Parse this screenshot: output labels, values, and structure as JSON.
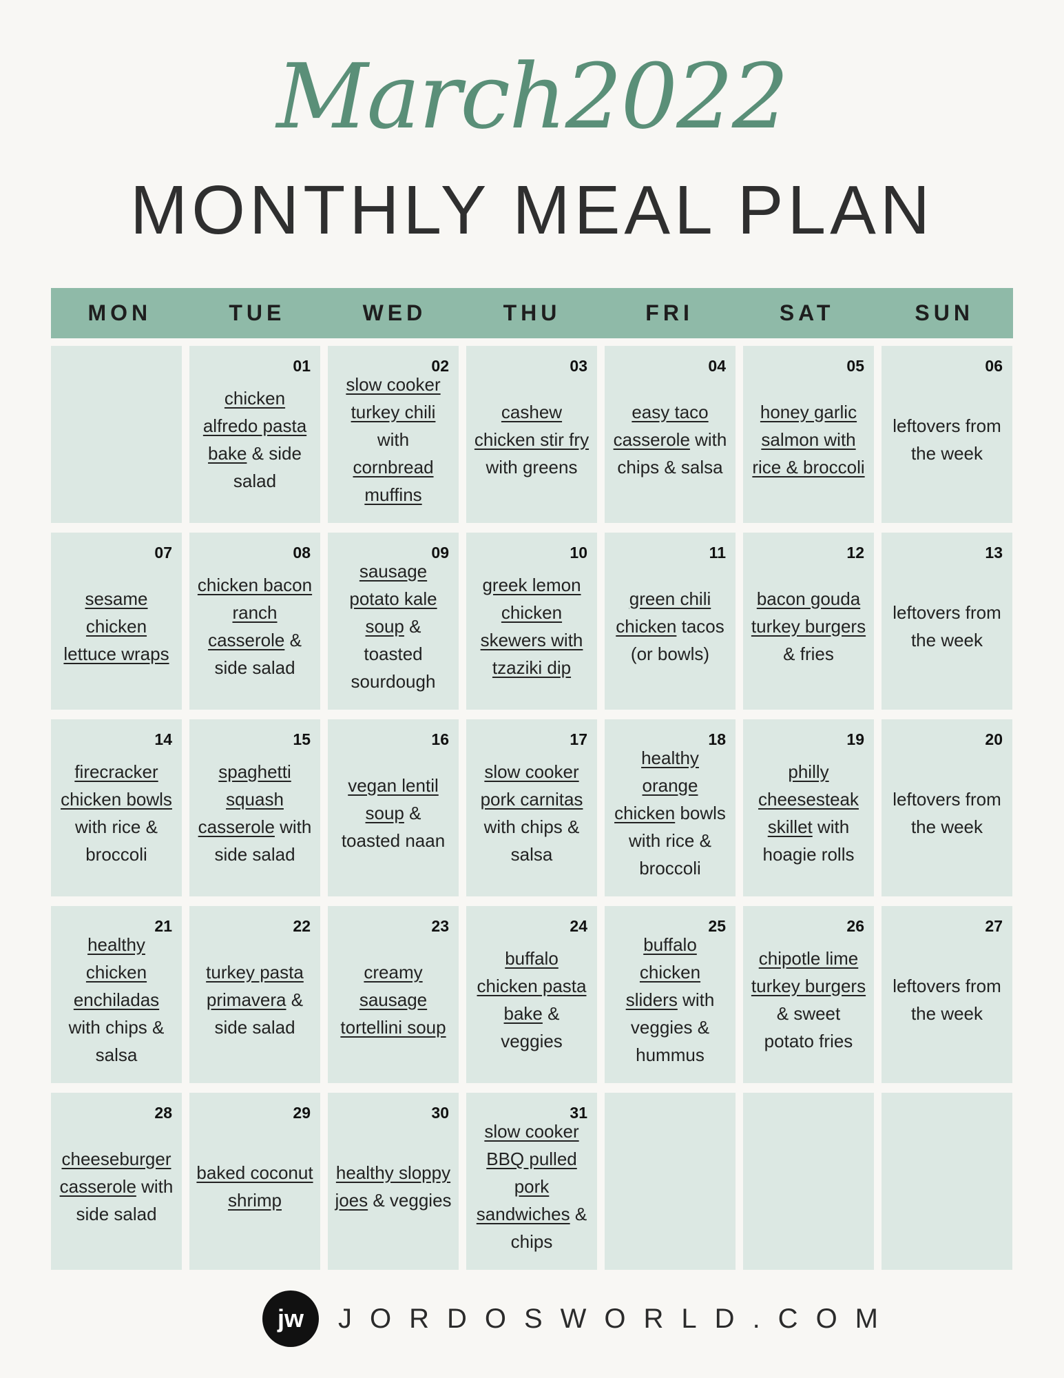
{
  "title_script": "March2022",
  "title": "MONTHLY MEAL PLAN",
  "colors": {
    "background": "#f8f7f4",
    "header_bar": "#8fbaa8",
    "cell": "#dce8e3",
    "accent": "#5a8f78"
  },
  "days": [
    "MON",
    "TUE",
    "WED",
    "THU",
    "FRI",
    "SAT",
    "SUN"
  ],
  "cells": [
    {
      "num": "",
      "meal": []
    },
    {
      "num": "01",
      "meal": [
        {
          "t": "chicken alfredo pasta bake",
          "u": true
        },
        {
          "t": " & side salad",
          "u": false
        }
      ]
    },
    {
      "num": "02",
      "meal": [
        {
          "t": "slow cooker turkey chili",
          "u": true
        },
        {
          "t": " with ",
          "u": false
        },
        {
          "t": "cornbread muffins",
          "u": true
        }
      ]
    },
    {
      "num": "03",
      "meal": [
        {
          "t": "cashew chicken stir fry ",
          "u": true
        },
        {
          "t": " with greens",
          "u": false
        }
      ]
    },
    {
      "num": "04",
      "meal": [
        {
          "t": "easy taco casserole",
          "u": true
        },
        {
          "t": " with chips & salsa",
          "u": false
        }
      ]
    },
    {
      "num": "05",
      "meal": [
        {
          "t": "honey garlic salmon with rice & broccoli",
          "u": true
        }
      ]
    },
    {
      "num": "06",
      "meal": [
        {
          "t": "leftovers from the week",
          "u": false
        }
      ]
    },
    {
      "num": "07",
      "meal": [
        {
          "t": "sesame chicken lettuce wraps ",
          "u": true
        }
      ]
    },
    {
      "num": "08",
      "meal": [
        {
          "t": "chicken bacon ranch casserole",
          "u": true
        },
        {
          "t": " & side salad",
          "u": false
        }
      ]
    },
    {
      "num": "09",
      "meal": [
        {
          "t": "sausage potato kale soup",
          "u": true
        },
        {
          "t": " & toasted sourdough",
          "u": false
        }
      ]
    },
    {
      "num": "10",
      "meal": [
        {
          "t": "greek lemon chicken skewers with tzaziki dip",
          "u": true
        }
      ]
    },
    {
      "num": "11",
      "meal": [
        {
          "t": "green chili chicken",
          "u": true
        },
        {
          "t": " tacos (or bowls)",
          "u": false
        }
      ]
    },
    {
      "num": "12",
      "meal": [
        {
          "t": "bacon gouda turkey burgers",
          "u": true
        },
        {
          "t": " & fries",
          "u": false
        }
      ]
    },
    {
      "num": "13",
      "meal": [
        {
          "t": "leftovers from the week",
          "u": false
        }
      ]
    },
    {
      "num": "14",
      "meal": [
        {
          "t": "firecracker chicken bowls",
          "u": true
        },
        {
          "t": " with rice & broccoli",
          "u": false
        }
      ]
    },
    {
      "num": "15",
      "meal": [
        {
          "t": "spaghetti squash casserole",
          "u": true
        },
        {
          "t": " with side salad",
          "u": false
        }
      ]
    },
    {
      "num": "16",
      "meal": [
        {
          "t": "vegan lentil soup",
          "u": true
        },
        {
          "t": " & toasted naan",
          "u": false
        }
      ]
    },
    {
      "num": "17",
      "meal": [
        {
          "t": "slow cooker pork carnitas",
          "u": true
        },
        {
          "t": " with chips & salsa",
          "u": false
        }
      ]
    },
    {
      "num": "18",
      "meal": [
        {
          "t": "healthy orange chicken",
          "u": true
        },
        {
          "t": " bowls with rice & broccoli",
          "u": false
        }
      ]
    },
    {
      "num": "19",
      "meal": [
        {
          "t": "philly cheesesteak skillet",
          "u": true
        },
        {
          "t": " with hoagie rolls",
          "u": false
        }
      ]
    },
    {
      "num": "20",
      "meal": [
        {
          "t": "leftovers from the week",
          "u": false
        }
      ]
    },
    {
      "num": "21",
      "meal": [
        {
          "t": "healthy chicken enchiladas",
          "u": true
        },
        {
          "t": " with chips & salsa",
          "u": false
        }
      ]
    },
    {
      "num": "22",
      "meal": [
        {
          "t": "turkey pasta primavera",
          "u": true
        },
        {
          "t": " & side salad",
          "u": false
        }
      ]
    },
    {
      "num": "23",
      "meal": [
        {
          "t": "creamy sausage tortellini soup",
          "u": true
        }
      ]
    },
    {
      "num": "24",
      "meal": [
        {
          "t": "buffalo chicken pasta bake",
          "u": true
        },
        {
          "t": " & veggies",
          "u": false
        }
      ]
    },
    {
      "num": "25",
      "meal": [
        {
          "t": "buffalo chicken sliders",
          "u": true
        },
        {
          "t": " with veggies & hummus",
          "u": false
        }
      ]
    },
    {
      "num": "26",
      "meal": [
        {
          "t": "chipotle lime turkey burgers",
          "u": true
        },
        {
          "t": " & sweet potato fries",
          "u": false
        }
      ]
    },
    {
      "num": "27",
      "meal": [
        {
          "t": "leftovers from the week",
          "u": false
        }
      ]
    },
    {
      "num": "28",
      "meal": [
        {
          "t": "cheeseburger casserole",
          "u": true
        },
        {
          "t": " with side salad",
          "u": false
        }
      ]
    },
    {
      "num": "29",
      "meal": [
        {
          "t": "baked coconut shrimp",
          "u": true
        }
      ]
    },
    {
      "num": "30",
      "meal": [
        {
          "t": "healthy sloppy joes",
          "u": true
        },
        {
          "t": " & veggies",
          "u": false
        }
      ]
    },
    {
      "num": "31",
      "meal": [
        {
          "t": "slow cooker BBQ pulled pork sandwiches",
          "u": true
        },
        {
          "t": " & chips",
          "u": false
        }
      ]
    },
    {
      "num": "",
      "meal": []
    },
    {
      "num": "",
      "meal": []
    },
    {
      "num": "",
      "meal": []
    }
  ],
  "footer": {
    "logo_text": "jw",
    "site": "JORDOSWORLD.COM"
  }
}
